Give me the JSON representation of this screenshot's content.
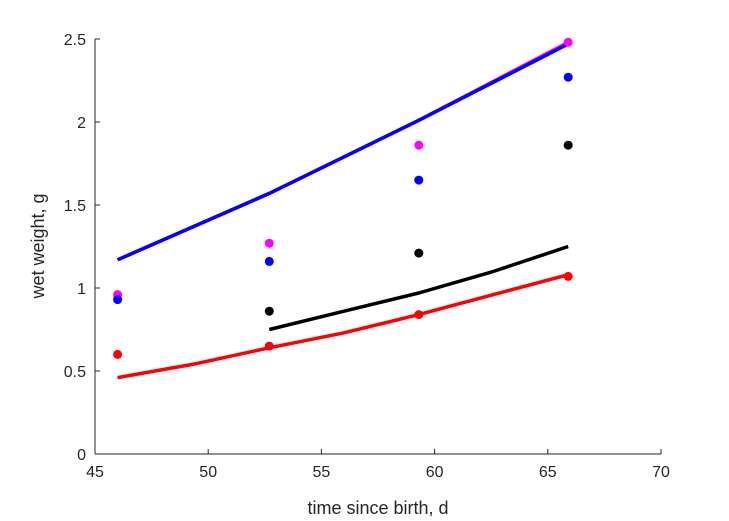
{
  "chart_data": {
    "type": "scatter",
    "title": "",
    "xlabel": "time since birth, d",
    "ylabel": "wet weight, g",
    "xlim": [
      45,
      70
    ],
    "ylim": [
      0,
      2.5
    ],
    "xticks": [
      45,
      50,
      55,
      60,
      65,
      70
    ],
    "yticks": [
      0,
      0.5,
      1,
      1.5,
      2,
      2.5
    ],
    "xtick_labels": [
      "45",
      "50",
      "55",
      "60",
      "65",
      "70"
    ],
    "ytick_labels": [
      "0",
      "0.5",
      "1",
      "1.5",
      "2",
      "2.5"
    ],
    "grid": false,
    "legend": "none",
    "series": [
      {
        "color": "#ff00ff",
        "points": {
          "x": [
            46.0,
            52.7,
            59.3,
            65.9
          ],
          "y": [
            0.96,
            1.27,
            1.86,
            2.48
          ]
        },
        "line": {
          "x": [
            46.0,
            52.7,
            59.3,
            65.9
          ],
          "y": [
            1.17,
            1.57,
            2.01,
            2.48
          ]
        }
      },
      {
        "color": "#0000ff",
        "points": {
          "x": [
            46.0,
            52.7,
            59.3,
            65.9
          ],
          "y": [
            0.93,
            1.16,
            1.65,
            2.27
          ]
        },
        "line": {
          "x": [
            46.0,
            52.7,
            59.3,
            65.9
          ],
          "y": [
            1.17,
            1.57,
            2.01,
            2.47
          ]
        }
      },
      {
        "color": "#000000",
        "points": {
          "x": [
            52.7,
            59.3,
            65.9
          ],
          "y": [
            0.86,
            1.21,
            1.86
          ]
        },
        "line": {
          "x": [
            52.7,
            56.0,
            59.3,
            62.6,
            65.9
          ],
          "y": [
            0.75,
            0.86,
            0.97,
            1.1,
            1.25
          ]
        }
      },
      {
        "color": "#ff0000",
        "points": {
          "x": [
            46.0,
            52.7,
            59.3,
            65.9
          ],
          "y": [
            0.6,
            0.65,
            0.84,
            1.07
          ]
        },
        "line": {
          "x": [
            46.0,
            49.3,
            52.7,
            56.0,
            59.3,
            62.6,
            65.9
          ],
          "y": [
            0.46,
            0.54,
            0.64,
            0.73,
            0.84,
            0.96,
            1.08
          ]
        }
      }
    ]
  }
}
